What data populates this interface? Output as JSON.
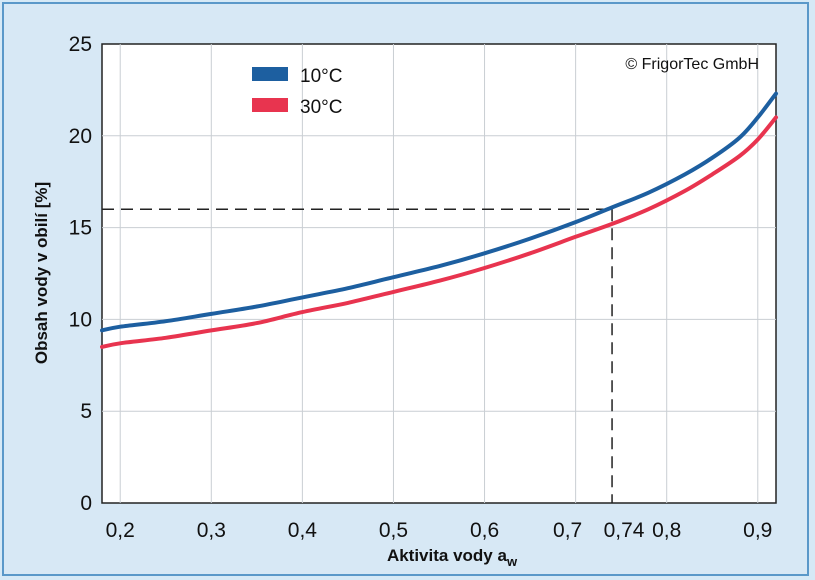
{
  "chart_data": {
    "type": "line",
    "xlabel_main": "Aktivita vody a",
    "xlabel_sub": "w",
    "ylabel": "Obsah vody v obilí [%]",
    "copyright": "© FrigorTec GmbH",
    "xlim": [
      0.18,
      0.92
    ],
    "ylim": [
      0,
      25
    ],
    "x_ticks": [
      {
        "value": 0.2,
        "label": "0,2"
      },
      {
        "value": 0.3,
        "label": "0,3"
      },
      {
        "value": 0.4,
        "label": "0,4"
      },
      {
        "value": 0.5,
        "label": "0,5"
      },
      {
        "value": 0.6,
        "label": "0,6"
      },
      {
        "value": 0.7,
        "label": "0,7"
      },
      {
        "value": 0.74,
        "label": "0,74"
      },
      {
        "value": 0.8,
        "label": "0,8"
      },
      {
        "value": 0.9,
        "label": "0,9"
      }
    ],
    "y_ticks": [
      {
        "value": 0,
        "label": "0"
      },
      {
        "value": 5,
        "label": "5"
      },
      {
        "value": 10,
        "label": "10"
      },
      {
        "value": 15,
        "label": "15"
      },
      {
        "value": 20,
        "label": "20"
      },
      {
        "value": 25,
        "label": "25"
      }
    ],
    "grid": true,
    "legend_position": "top-left",
    "series": [
      {
        "name": "10°C",
        "color": "#1d5fa0",
        "x": [
          0.18,
          0.2,
          0.25,
          0.3,
          0.35,
          0.4,
          0.45,
          0.5,
          0.55,
          0.6,
          0.65,
          0.7,
          0.74,
          0.78,
          0.82,
          0.85,
          0.88,
          0.9,
          0.92
        ],
        "y": [
          9.4,
          9.6,
          9.9,
          10.3,
          10.7,
          11.2,
          11.7,
          12.3,
          12.9,
          13.6,
          14.4,
          15.3,
          16.1,
          16.9,
          17.9,
          18.8,
          19.9,
          21.0,
          22.3
        ]
      },
      {
        "name": "30°C",
        "color": "#e8344f",
        "x": [
          0.18,
          0.2,
          0.25,
          0.3,
          0.35,
          0.4,
          0.45,
          0.5,
          0.55,
          0.6,
          0.65,
          0.7,
          0.74,
          0.78,
          0.82,
          0.85,
          0.88,
          0.9,
          0.92
        ],
        "y": [
          8.5,
          8.7,
          9.0,
          9.4,
          9.8,
          10.4,
          10.9,
          11.5,
          12.1,
          12.8,
          13.6,
          14.5,
          15.2,
          16.0,
          17.0,
          17.9,
          18.9,
          19.8,
          21.0
        ]
      }
    ],
    "reference_point": {
      "x": 0.74,
      "y": 16.0
    }
  }
}
